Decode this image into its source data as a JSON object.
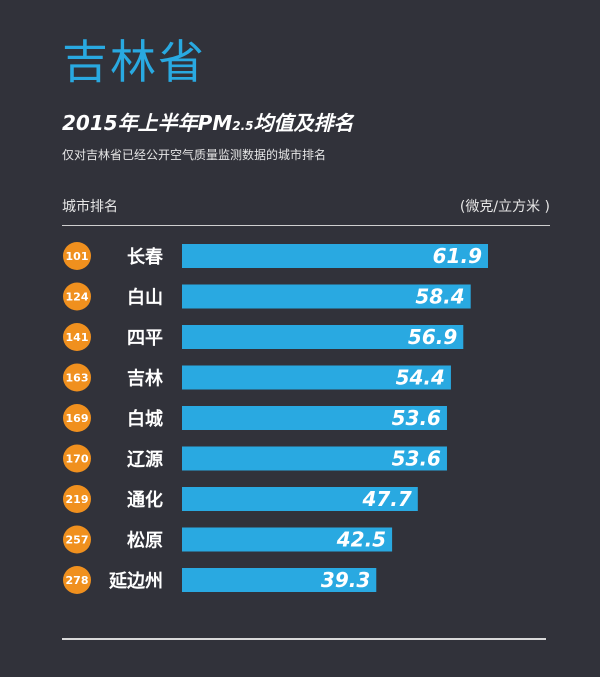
{
  "header": {
    "province": "吉林省",
    "subtitle_main": "2015年上半年PM",
    "subtitle_sub": "2.5",
    "subtitle_tail": "均值及排名",
    "note": "仅对吉林省已经公开空气质量监测数据的城市排名",
    "col_left": "城市排名",
    "col_right": "(微克/立方米 )"
  },
  "colors": {
    "bar": "#29a9e1",
    "badge": "#f0901e",
    "background": "#31323a",
    "title": "#29a9e1"
  },
  "chart_data": {
    "type": "bar",
    "orientation": "horizontal",
    "categories": [
      "长春",
      "白山",
      "四平",
      "吉林",
      "白城",
      "辽源",
      "通化",
      "松原",
      "延边州"
    ],
    "ranks": [
      "101",
      "124",
      "141",
      "163",
      "169",
      "170",
      "219",
      "257",
      "278"
    ],
    "values": [
      61.9,
      58.4,
      56.9,
      54.4,
      53.6,
      53.6,
      47.7,
      42.5,
      39.3
    ],
    "value_labels": [
      "61.9",
      "58.4",
      "56.9",
      "54.4",
      "53.6",
      "53.6",
      "47.7",
      "42.5",
      "39.3"
    ],
    "title": "2015年上半年PM2.5均值及排名",
    "xlabel": "",
    "ylabel": "",
    "grid": false
  }
}
